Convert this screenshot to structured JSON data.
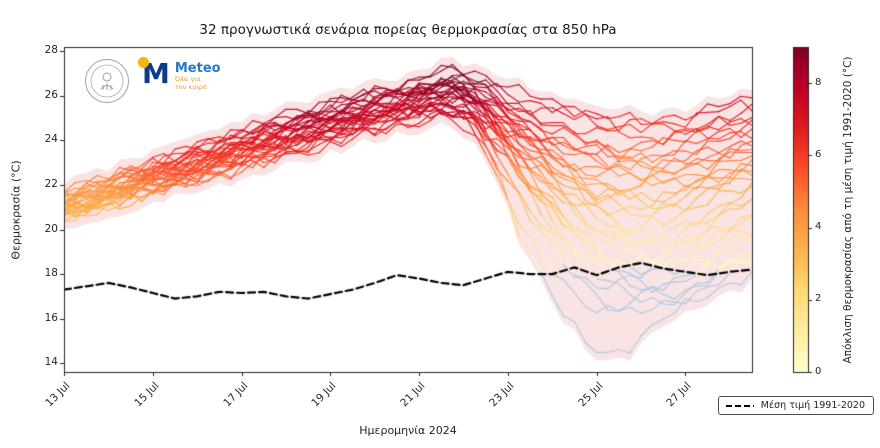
{
  "logos": {
    "meteo_name": "Meteo",
    "tagline_line1": "Όλα για",
    "tagline_line2": "τον καιρό"
  },
  "chart_data": {
    "type": "line",
    "title": "32 προγνωστικά σενάρια πορείας θερμοκρασίας στα 850 hPa",
    "xlabel": "Ημερομηνία 2024",
    "ylabel": "Θερμοκρασία (°C)",
    "ylim": [
      13.6,
      28.2
    ],
    "x_range_days": [
      13,
      28.5
    ],
    "y_ticks": [
      14,
      16,
      18,
      20,
      22,
      24,
      26,
      28
    ],
    "x_tick_days": [
      13,
      15,
      17,
      19,
      21,
      23,
      25,
      27
    ],
    "x_ticks": [
      "13 Jul",
      "15 Jul",
      "17 Jul",
      "19 Jul",
      "21 Jul",
      "23 Jul",
      "25 Jul",
      "27 Jul"
    ],
    "legend": [
      "Μέση τιμή 1991-2020"
    ],
    "colorbar": {
      "label": "Απόκλιση θερμοκρασίας από τη μέση τιμή 1991-2020 (°C)",
      "ticks": [
        0,
        2,
        4,
        6,
        8
      ],
      "range": [
        0,
        9
      ],
      "colormap": "YlOrRd",
      "below_zero_color": "#a9c6e4"
    },
    "envelope_color": "#e05050",
    "climatology_start_day": 13,
    "climatology_step_days": 0.5,
    "climatology": [
      17.3,
      17.45,
      17.6,
      17.4,
      17.15,
      16.9,
      17.0,
      17.2,
      17.15,
      17.2,
      17.0,
      16.9,
      17.1,
      17.3,
      17.6,
      17.95,
      17.8,
      17.6,
      17.5,
      17.8,
      18.1,
      18.0,
      18.0,
      18.3,
      17.95,
      18.3,
      18.5,
      18.25,
      18.1,
      17.95,
      18.1,
      18.2
    ],
    "ensemble_control_days": [
      13,
      14.5,
      16,
      17.5,
      19,
      20.5,
      22,
      23.5,
      25,
      26.5,
      28.5
    ],
    "ensemble": [
      [
        21.2,
        22.0,
        22.8,
        23.5,
        24.5,
        25.2,
        26.0,
        25.5,
        24.8,
        24.5,
        24.2
      ],
      [
        21.5,
        22.5,
        23.2,
        24.0,
        25.0,
        26.0,
        26.5,
        25.8,
        25.0,
        24.0,
        25.5
      ],
      [
        20.8,
        21.8,
        22.5,
        23.8,
        24.8,
        25.5,
        26.8,
        24.5,
        23.5,
        23.0,
        24.0
      ],
      [
        21.0,
        22.2,
        23.0,
        24.2,
        25.2,
        26.2,
        25.5,
        24.0,
        22.5,
        23.5,
        24.5
      ],
      [
        21.8,
        22.8,
        23.5,
        24.5,
        25.5,
        26.5,
        27.0,
        25.0,
        24.5,
        25.0,
        25.8
      ],
      [
        21.3,
        22.3,
        23.8,
        24.8,
        25.8,
        26.0,
        26.3,
        23.0,
        21.5,
        22.5,
        23.5
      ],
      [
        20.5,
        21.5,
        22.3,
        23.3,
        24.3,
        25.0,
        25.8,
        24.8,
        23.8,
        22.8,
        23.8
      ],
      [
        21.0,
        22.0,
        23.3,
        24.3,
        25.3,
        25.8,
        26.5,
        22.0,
        19.5,
        21.0,
        22.5
      ],
      [
        21.6,
        22.4,
        23.0,
        24.0,
        24.6,
        25.4,
        26.2,
        24.2,
        22.0,
        21.5,
        23.0
      ],
      [
        20.9,
        21.6,
        22.8,
        23.6,
        24.4,
        25.6,
        25.2,
        23.8,
        22.8,
        24.0,
        24.8
      ],
      [
        21.1,
        22.1,
        23.1,
        24.1,
        25.1,
        25.9,
        24.8,
        23.2,
        21.8,
        22.2,
        23.2
      ],
      [
        21.4,
        22.6,
        23.4,
        24.4,
        25.4,
        26.3,
        25.8,
        24.5,
        23.2,
        22.0,
        22.8
      ],
      [
        20.7,
        21.9,
        22.6,
        23.9,
        24.9,
        25.3,
        26.0,
        23.5,
        20.5,
        19.5,
        21.5
      ],
      [
        21.2,
        22.0,
        23.6,
        24.6,
        25.0,
        25.7,
        26.6,
        21.5,
        18.5,
        19.0,
        20.5
      ],
      [
        21.0,
        21.8,
        22.9,
        23.7,
        24.7,
        25.5,
        26.1,
        20.5,
        17.5,
        18.5,
        20.0
      ],
      [
        20.6,
        21.4,
        22.4,
        23.4,
        24.2,
        25.1,
        25.6,
        19.5,
        16.5,
        17.5,
        19.5
      ],
      [
        21.3,
        22.1,
        23.2,
        24.2,
        24.8,
        25.6,
        24.5,
        21.0,
        17.0,
        16.5,
        18.5
      ],
      [
        20.8,
        21.7,
        22.7,
        23.5,
        24.5,
        25.2,
        25.0,
        19.0,
        14.5,
        16.0,
        18.0
      ],
      [
        21.5,
        22.3,
        23.0,
        24.0,
        25.0,
        25.8,
        26.4,
        22.5,
        19.0,
        17.5,
        19.0
      ],
      [
        20.9,
        21.8,
        22.5,
        23.2,
        24.0,
        24.8,
        25.4,
        21.8,
        18.0,
        16.8,
        18.8
      ],
      [
        21.1,
        21.9,
        22.8,
        23.8,
        24.6,
        25.4,
        25.9,
        23.0,
        20.0,
        18.5,
        20.5
      ],
      [
        20.3,
        21.3,
        22.2,
        23.0,
        23.8,
        24.6,
        25.0,
        22.2,
        19.2,
        18.0,
        19.8
      ],
      [
        21.7,
        22.7,
        23.7,
        24.7,
        25.3,
        26.1,
        26.7,
        24.0,
        21.0,
        19.8,
        21.8
      ],
      [
        21.0,
        21.7,
        22.6,
        23.4,
        24.4,
        25.0,
        25.5,
        22.8,
        20.8,
        21.5,
        22.8
      ],
      [
        20.7,
        21.5,
        22.3,
        23.1,
        24.1,
        24.9,
        25.3,
        23.5,
        21.5,
        20.5,
        22.0
      ],
      [
        21.2,
        22.2,
        23.1,
        24.1,
        24.9,
        25.7,
        26.2,
        23.8,
        22.2,
        21.0,
        22.5
      ],
      [
        20.6,
        21.6,
        22.1,
        23.2,
        24.0,
        24.7,
        25.1,
        22.0,
        18.8,
        17.0,
        18.8
      ],
      [
        21.4,
        22.4,
        23.3,
        24.3,
        25.2,
        26.0,
        26.8,
        25.2,
        23.8,
        23.2,
        24.6
      ],
      [
        20.8,
        21.6,
        22.4,
        23.6,
        24.3,
        25.1,
        25.7,
        24.3,
        23.0,
        22.5,
        23.8
      ],
      [
        21.0,
        22.0,
        22.9,
        23.9,
        24.7,
        25.5,
        26.3,
        24.7,
        23.4,
        24.2,
        25.0
      ],
      [
        21.6,
        22.5,
        23.5,
        24.5,
        25.6,
        26.4,
        27.2,
        26.0,
        25.2,
        24.8,
        25.6
      ],
      [
        20.9,
        21.9,
        22.7,
        23.7,
        24.5,
        25.3,
        26.1,
        22.6,
        20.2,
        19.2,
        21.2
      ]
    ]
  }
}
